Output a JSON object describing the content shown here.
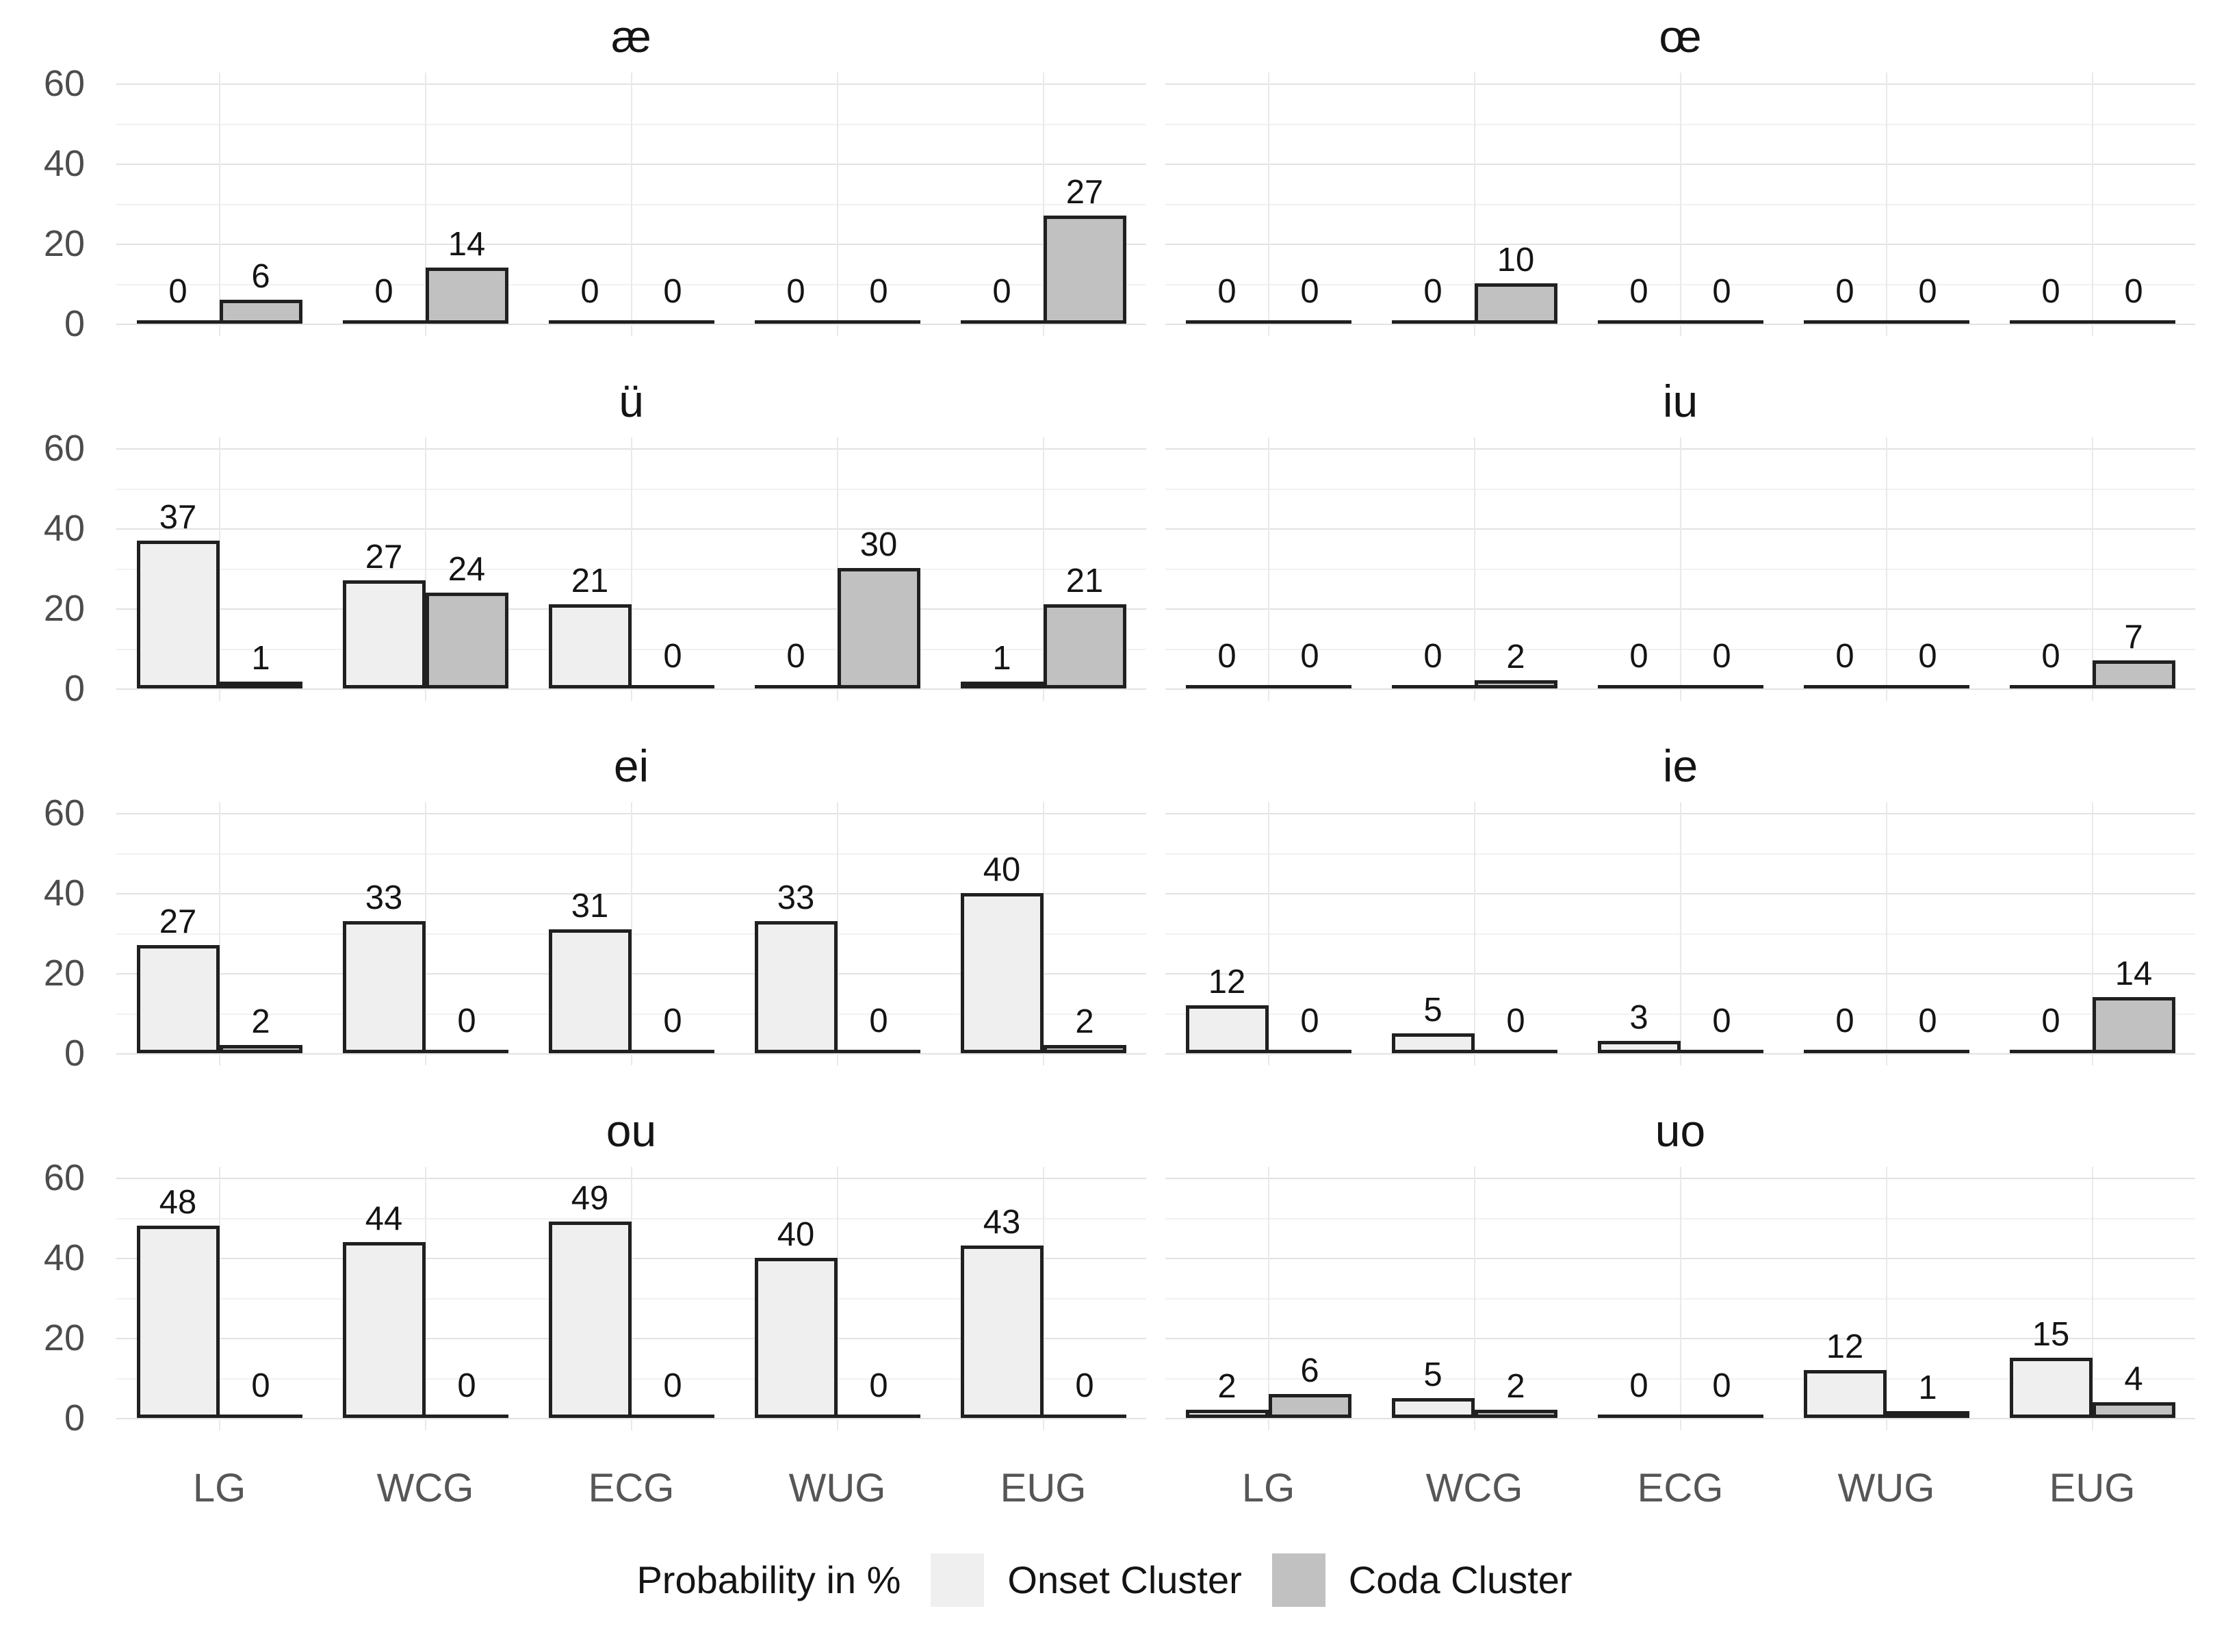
{
  "chart_data": {
    "type": "bar",
    "layout": "facet-grid-4x2",
    "title": "",
    "xlabel": "",
    "ylabel": "Probability in %",
    "categories": [
      "LG",
      "WCG",
      "ECG",
      "WUG",
      "EUG"
    ],
    "ylim": [
      0,
      60
    ],
    "yticks": [
      0,
      20,
      40,
      60
    ],
    "yticks_minor": [
      10,
      30,
      50
    ],
    "grid": "on",
    "panels": [
      {
        "title": "æ",
        "series": [
          {
            "name": "Onset Cluster",
            "values": [
              0,
              0,
              0,
              0,
              0
            ]
          },
          {
            "name": "Coda Cluster",
            "values": [
              6,
              14,
              0,
              0,
              27
            ]
          }
        ]
      },
      {
        "title": "œ",
        "series": [
          {
            "name": "Onset Cluster",
            "values": [
              0,
              0,
              0,
              0,
              0
            ]
          },
          {
            "name": "Coda Cluster",
            "values": [
              0,
              10,
              0,
              0,
              0
            ]
          }
        ]
      },
      {
        "title": "ü",
        "series": [
          {
            "name": "Onset Cluster",
            "values": [
              37,
              27,
              21,
              0,
              1
            ]
          },
          {
            "name": "Coda Cluster",
            "values": [
              1,
              24,
              0,
              30,
              21
            ]
          }
        ]
      },
      {
        "title": "iu",
        "series": [
          {
            "name": "Onset Cluster",
            "values": [
              0,
              0,
              0,
              0,
              0
            ]
          },
          {
            "name": "Coda Cluster",
            "values": [
              0,
              2,
              0,
              0,
              7
            ]
          }
        ]
      },
      {
        "title": "ei",
        "series": [
          {
            "name": "Onset Cluster",
            "values": [
              27,
              33,
              31,
              33,
              40
            ]
          },
          {
            "name": "Coda Cluster",
            "values": [
              2,
              0,
              0,
              0,
              2
            ]
          }
        ]
      },
      {
        "title": "ie",
        "series": [
          {
            "name": "Onset Cluster",
            "values": [
              12,
              5,
              3,
              0,
              0
            ]
          },
          {
            "name": "Coda Cluster",
            "values": [
              0,
              0,
              0,
              0,
              14
            ]
          }
        ]
      },
      {
        "title": "ou",
        "series": [
          {
            "name": "Onset Cluster",
            "values": [
              48,
              44,
              49,
              40,
              43
            ]
          },
          {
            "name": "Coda Cluster",
            "values": [
              0,
              0,
              0,
              0,
              0
            ]
          }
        ]
      },
      {
        "title": "uo",
        "series": [
          {
            "name": "Onset Cluster",
            "values": [
              2,
              5,
              0,
              12,
              15
            ]
          },
          {
            "name": "Coda Cluster",
            "values": [
              6,
              2,
              0,
              1,
              4
            ]
          }
        ]
      }
    ],
    "legend": {
      "position": "bottom",
      "title": "Probability in %",
      "entries": [
        {
          "label": "Onset Cluster",
          "color": "#efefef"
        },
        {
          "label": "Coda Cluster",
          "color": "#c1c1c1"
        }
      ]
    },
    "colors": {
      "onset_fill": "#efefef",
      "coda_fill": "#c1c1c1",
      "bar_border": "#202020",
      "grid_major": "#e2e2e2",
      "grid_minor": "#f1f1f1",
      "axis_text": "#4c4c4c",
      "background": "#ffffff"
    }
  }
}
